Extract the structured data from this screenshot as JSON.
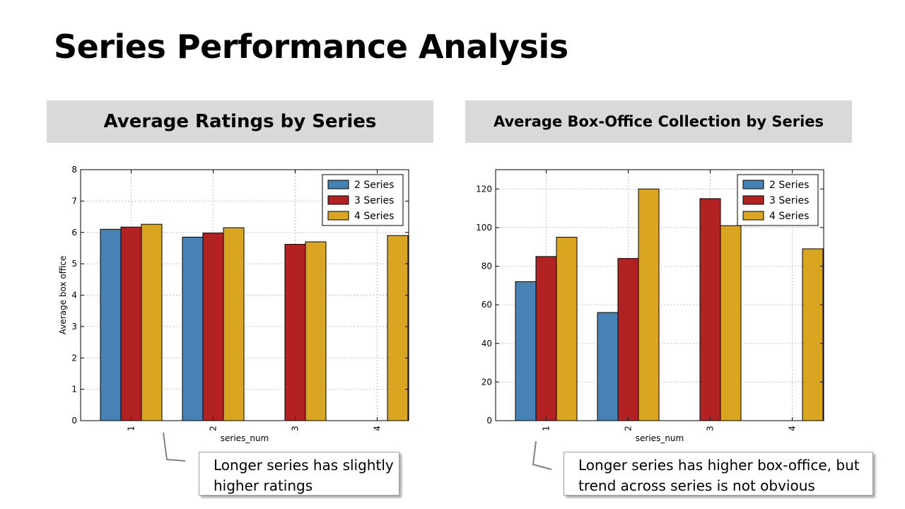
{
  "slide": {
    "title": "Series Performance Analysis",
    "callouts": [
      "Longer series has slightly higher ratings",
      "Longer series has higher box-office, but trend across series is not obvious"
    ]
  },
  "colors": {
    "series": [
      "#4682b4",
      "#b22222",
      "#daa520"
    ],
    "header_bg": "#d9d9d9"
  },
  "chart_data": [
    {
      "type": "bar",
      "panel_title": "Average Ratings by Series",
      "xlabel": "series_num",
      "ylabel": "Average box office",
      "categories": [
        "1",
        "2",
        "3",
        "4"
      ],
      "ylim": [
        0,
        8
      ],
      "yticks": [
        "0",
        "1",
        "2",
        "3",
        "4",
        "5",
        "6",
        "7",
        "8"
      ],
      "grid": true,
      "legend": "top-right",
      "series": [
        {
          "name": "2 Series",
          "values": [
            6.1,
            5.85,
            0,
            0
          ]
        },
        {
          "name": "3 Series",
          "values": [
            6.17,
            5.98,
            5.62,
            0
          ]
        },
        {
          "name": "4 Series",
          "values": [
            6.26,
            6.15,
            5.7,
            5.9
          ]
        }
      ]
    },
    {
      "type": "bar",
      "panel_title": "Average Box-Office Collection by Series",
      "xlabel": "series_num",
      "ylabel": "",
      "categories": [
        "1",
        "2",
        "3",
        "4"
      ],
      "ylim": [
        0,
        130
      ],
      "yticks": [
        "0",
        "20",
        "40",
        "60",
        "80",
        "100",
        "120"
      ],
      "grid": true,
      "legend": "top-right",
      "series": [
        {
          "name": "2 Series",
          "values": [
            72,
            56,
            0,
            0
          ]
        },
        {
          "name": "3 Series",
          "values": [
            85,
            84,
            115,
            0
          ]
        },
        {
          "name": "4 Series",
          "values": [
            95,
            120,
            101,
            89
          ]
        }
      ]
    }
  ]
}
